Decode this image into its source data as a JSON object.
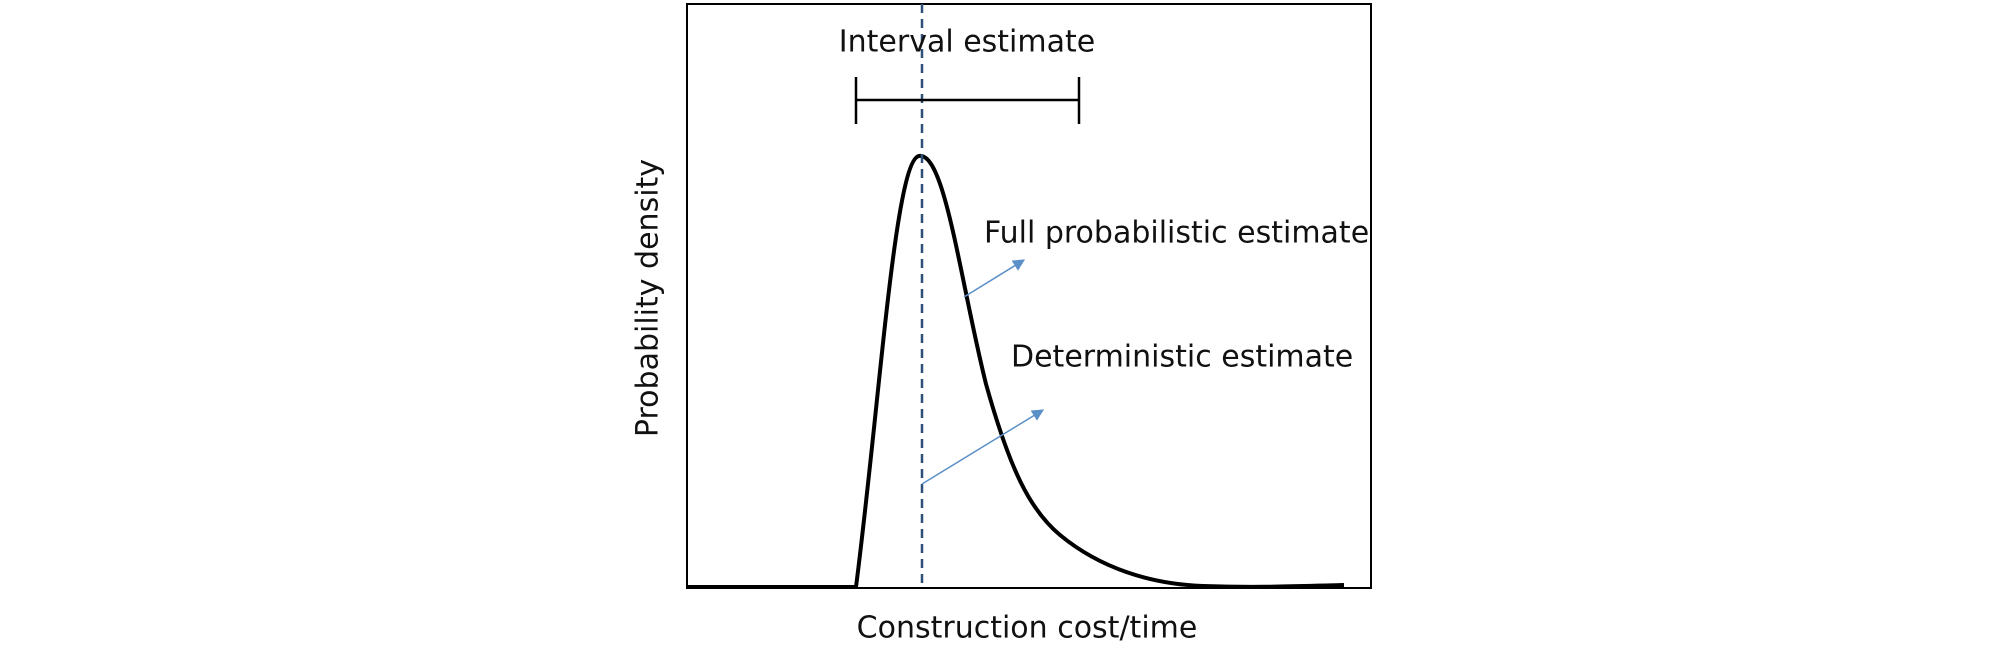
{
  "diagram": {
    "interval_label": "Interval estimate",
    "full_label": "Full probabilistic estimate",
    "deterministic_label": "Deterministic estimate",
    "y_axis_label": "Probability density",
    "x_axis_label": "Construction cost/time"
  }
}
